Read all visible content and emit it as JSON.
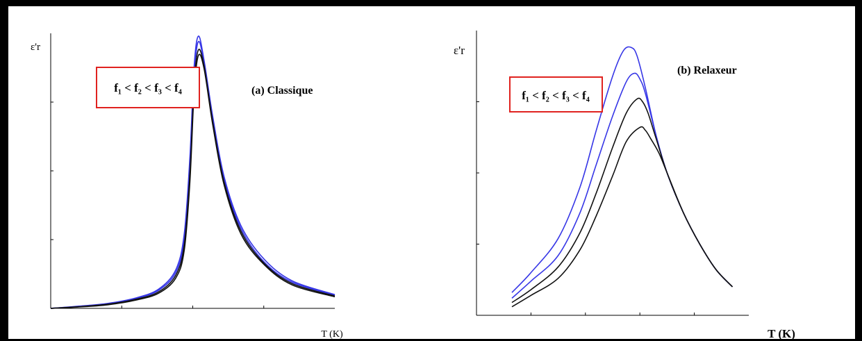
{
  "colors": {
    "blue": "#3636e6",
    "black": "#111111",
    "legend_border": "#e0221f",
    "frame": "#000000"
  },
  "chart_data": [
    {
      "type": "line",
      "title": "(a) Classique",
      "ylabel": "ε'r",
      "xlabel": "T (K)",
      "legend": "f₁ < f₂ < f₃ < f₄",
      "xlim": [
        0,
        100
      ],
      "ylim": [
        0,
        100
      ],
      "x_ticks": [
        25,
        50,
        75
      ],
      "y_ticks": [
        25,
        50,
        75
      ],
      "grid": false,
      "series": [
        {
          "color": "blue",
          "x": [
            0,
            10,
            20,
            30,
            38,
            44,
            47,
            49,
            50.5,
            52,
            54,
            57,
            61,
            67,
            75,
            85,
            100
          ],
          "y": [
            0,
            0.8,
            1.8,
            3.8,
            7,
            14,
            27,
            55,
            88,
            99,
            90,
            70,
            48,
            30,
            18,
            10,
            5
          ]
        },
        {
          "color": "blue",
          "x": [
            0,
            10,
            20,
            30,
            38,
            44,
            47,
            49,
            50.5,
            52,
            54,
            57,
            61,
            67,
            75,
            85,
            100
          ],
          "y": [
            0,
            0.7,
            1.7,
            3.6,
            6.6,
            13,
            25,
            52,
            85,
            97,
            89,
            69,
            47,
            29,
            17,
            9.5,
            4.8
          ]
        },
        {
          "color": "black",
          "x": [
            0,
            10,
            20,
            30,
            38,
            44,
            47,
            49,
            50.5,
            52,
            54,
            57,
            61,
            67,
            75,
            85,
            100
          ],
          "y": [
            0,
            0.6,
            1.5,
            3.3,
            6,
            12,
            23,
            49,
            82,
            94,
            88,
            68,
            46,
            28,
            16.5,
            9,
            4.5
          ]
        },
        {
          "color": "black",
          "x": [
            0,
            10,
            20,
            30,
            38,
            44,
            47,
            49,
            50.5,
            52,
            54,
            57,
            61,
            67,
            75,
            85,
            100
          ],
          "y": [
            0,
            0.5,
            1.3,
            3.0,
            5.5,
            11,
            21,
            46,
            79,
            92,
            87,
            67,
            45,
            27,
            16,
            8.5,
            4.2
          ]
        }
      ]
    },
    {
      "type": "line",
      "title": "(b) Relaxeur",
      "ylabel": "ε'r",
      "xlabel": "T (K)",
      "legend": "f₁ < f₂ < f₃ < f₄",
      "xlim": [
        0,
        100
      ],
      "ylim": [
        0,
        100
      ],
      "x_ticks": [
        20,
        40,
        60,
        80
      ],
      "y_ticks": [
        25,
        50,
        75
      ],
      "grid": false,
      "series": [
        {
          "color": "blue",
          "x": [
            13,
            20,
            30,
            38,
            44,
            50,
            54,
            57,
            59,
            62,
            66,
            70,
            76,
            82,
            88,
            94
          ],
          "y": [
            8,
            15,
            27,
            45,
            65,
            84,
            93,
            94,
            91,
            80,
            63,
            50,
            36,
            25,
            16,
            10
          ]
        },
        {
          "color": "blue",
          "x": [
            13,
            20,
            30,
            38,
            44,
            50,
            55,
            58,
            60,
            62,
            66,
            70,
            76,
            82,
            88,
            94
          ],
          "y": [
            6,
            12,
            21,
            36,
            53,
            70,
            82,
            85,
            83,
            78,
            63,
            50,
            36,
            25,
            16,
            10
          ]
        },
        {
          "color": "black",
          "x": [
            13,
            20,
            30,
            38,
            44,
            50,
            55,
            59,
            61,
            63,
            66,
            70,
            76,
            82,
            88,
            94
          ],
          "y": [
            4.5,
            9,
            17,
            29,
            43,
            59,
            71,
            76,
            75,
            71,
            62,
            50,
            36,
            25,
            16,
            10
          ]
        },
        {
          "color": "black",
          "x": [
            13,
            20,
            30,
            38,
            44,
            50,
            55,
            60,
            62,
            64,
            67,
            70,
            76,
            82,
            88,
            94
          ],
          "y": [
            3,
            7,
            13,
            23,
            35,
            49,
            61,
            66,
            65,
            62,
            57,
            50,
            36,
            25,
            16,
            10
          ]
        }
      ]
    }
  ]
}
